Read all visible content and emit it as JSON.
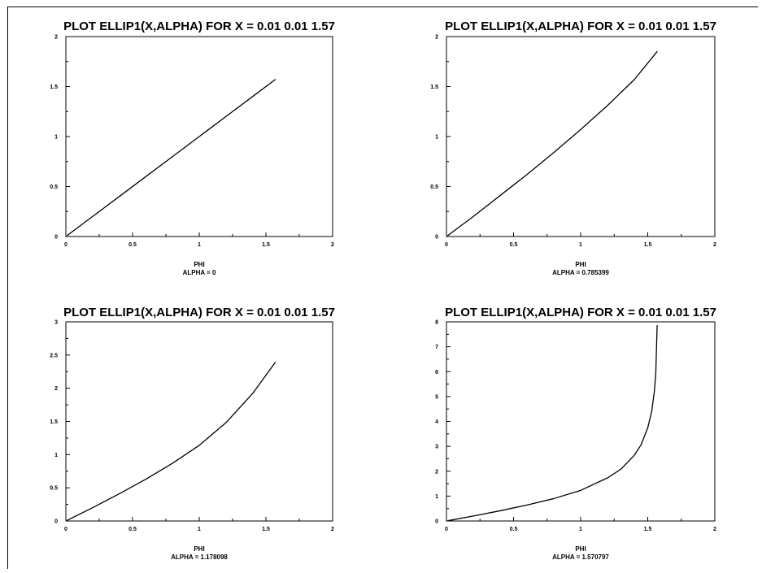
{
  "chart_data": [
    {
      "type": "line",
      "title": "PLOT ELLIP1(X,ALPHA) FOR X = 0.01 0.01 1.57",
      "xlabel": "PHI",
      "subtitle": "ALPHA = 0",
      "alpha": 0,
      "xlim": [
        0,
        2
      ],
      "ylim": [
        0,
        2
      ],
      "xticks": [
        "0",
        "0.5",
        "1",
        "1.5",
        "2"
      ],
      "yticks": [
        "0",
        "0.5",
        "1",
        "1.5",
        "2"
      ],
      "series": [
        {
          "x": [
            0.01,
            0.2,
            0.4,
            0.6,
            0.8,
            1.0,
            1.2,
            1.4,
            1.57
          ],
          "y": [
            0.01,
            0.2,
            0.4,
            0.6,
            0.8,
            1.0,
            1.2,
            1.4,
            1.57
          ]
        }
      ]
    },
    {
      "type": "line",
      "title": "PLOT ELLIP1(X,ALPHA) FOR X = 0.01 0.01 1.57",
      "xlabel": "PHI",
      "subtitle": "ALPHA = 0.785399",
      "alpha": 0.785399,
      "xlim": [
        0,
        2
      ],
      "ylim": [
        0,
        2
      ],
      "xticks": [
        "0",
        "0.5",
        "1",
        "1.5",
        "2"
      ],
      "yticks": [
        "0",
        "0.5",
        "1",
        "1.5",
        "2"
      ],
      "series": [
        {
          "x": [
            0.01,
            0.2,
            0.4,
            0.6,
            0.8,
            1.0,
            1.2,
            1.4,
            1.57
          ],
          "y": [
            0.01,
            0.2,
            0.41,
            0.62,
            0.84,
            1.07,
            1.31,
            1.57,
            1.85
          ]
        }
      ]
    },
    {
      "type": "line",
      "title": "PLOT ELLIP1(X,ALPHA) FOR X = 0.01 0.01 1.57",
      "xlabel": "PHI",
      "subtitle": "ALPHA = 1.178098",
      "alpha": 1.178098,
      "xlim": [
        0,
        2
      ],
      "ylim": [
        0,
        3
      ],
      "xticks": [
        "0",
        "0.5",
        "1",
        "1.5",
        "2"
      ],
      "yticks": [
        "0",
        "0.5",
        "1",
        "1.5",
        "2",
        "2.5",
        "3"
      ],
      "series": [
        {
          "x": [
            0.01,
            0.2,
            0.4,
            0.6,
            0.8,
            1.0,
            1.2,
            1.4,
            1.57
          ],
          "y": [
            0.01,
            0.2,
            0.41,
            0.63,
            0.87,
            1.14,
            1.48,
            1.92,
            2.39
          ]
        }
      ]
    },
    {
      "type": "line",
      "title": "PLOT ELLIP1(X,ALPHA) FOR X = 0.01 0.01 1.57",
      "xlabel": "PHI",
      "subtitle": "ALPHA = 1.570797",
      "alpha": 1.570797,
      "xlim": [
        0,
        2
      ],
      "ylim": [
        0,
        8
      ],
      "xticks": [
        "0",
        "0.5",
        "1",
        "1.5",
        "2"
      ],
      "yticks": [
        "0",
        "1",
        "2",
        "3",
        "4",
        "5",
        "6",
        "7",
        "8"
      ],
      "series": [
        {
          "x": [
            0.01,
            0.2,
            0.4,
            0.6,
            0.8,
            1.0,
            1.2,
            1.3,
            1.4,
            1.45,
            1.5,
            1.53,
            1.55,
            1.56,
            1.57
          ],
          "y": [
            0.01,
            0.2,
            0.41,
            0.64,
            0.9,
            1.23,
            1.73,
            2.08,
            2.64,
            3.06,
            3.74,
            4.42,
            5.24,
            5.94,
            7.85
          ]
        }
      ]
    }
  ]
}
